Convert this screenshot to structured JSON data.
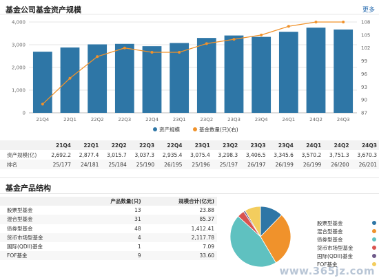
{
  "section1": {
    "title": "基金公司基金资产规模",
    "more": "更多"
  },
  "chart_data": {
    "type": "bar",
    "categories": [
      "21Q4",
      "22Q1",
      "22Q2",
      "22Q3",
      "22Q4",
      "23Q1",
      "23Q2",
      "23Q3",
      "23Q4",
      "24Q1",
      "24Q2",
      "24Q3"
    ],
    "series": [
      {
        "name": "资产规模",
        "type": "bar",
        "axis": "left",
        "color": "#2e76a6",
        "values": [
          2692.2,
          2877.4,
          3015.7,
          3037.3,
          2935.4,
          3075.4,
          3298.3,
          3406.5,
          3345.6,
          3570.2,
          3751.3,
          3670.3
        ]
      },
      {
        "name": "基金数量(只)(右)",
        "type": "line",
        "axis": "right",
        "color": "#f0922b",
        "values": [
          89,
          95,
          100,
          102,
          101,
          101,
          103,
          104,
          105,
          107,
          108,
          108
        ]
      }
    ],
    "yticks_left": [
      "4,000",
      "3,000",
      "2,000",
      "1,000",
      "0"
    ],
    "ylim_left": [
      0,
      4000
    ],
    "yticks_right": [
      "108",
      "105",
      "102",
      "99",
      "96",
      "93",
      "90",
      "87"
    ],
    "ylim_right": [
      87,
      108
    ],
    "grid": true,
    "legend": "bottom"
  },
  "scale_table": {
    "headers": [
      "21Q4",
      "22Q1",
      "22Q2",
      "22Q3",
      "22Q4",
      "23Q1",
      "23Q2",
      "23Q3",
      "23Q4",
      "24Q1",
      "24Q2",
      "24Q3"
    ],
    "rows": [
      {
        "label": "资产规模(亿)",
        "values": [
          "2,692.2",
          "2,877.4",
          "3,015.7",
          "3,037.3",
          "2,935.4",
          "3,075.4",
          "3,298.3",
          "3,406.5",
          "3,345.6",
          "3,570.2",
          "3,751.3",
          "3,670.3"
        ]
      },
      {
        "label": "排名",
        "values": [
          "25/177",
          "24/181",
          "25/184",
          "25/190",
          "26/195",
          "25/196",
          "25/197",
          "26/197",
          "26/199",
          "26/199",
          "26/200",
          "26/201"
        ]
      }
    ]
  },
  "section2": {
    "title": "基金产品结构"
  },
  "product_table": {
    "headers": [
      "",
      "产品数量(只)",
      "规模合计(亿元)"
    ],
    "rows": [
      {
        "name": "股票型基金",
        "count": "13",
        "scale": "23.88"
      },
      {
        "name": "混合型基金",
        "count": "31",
        "scale": "85.37"
      },
      {
        "name": "债券型基金",
        "count": "48",
        "scale": "1,412.41"
      },
      {
        "name": "货币市场型基金",
        "count": "4",
        "scale": "2,117.78"
      },
      {
        "name": "国际(QDII)基金",
        "count": "1",
        "scale": "7.09"
      },
      {
        "name": "FOF基金",
        "count": "9",
        "scale": "33.60"
      }
    ]
  },
  "pie_chart": {
    "type": "pie",
    "slices": [
      {
        "name": "股票型基金",
        "value": 13,
        "color": "#2e76a6"
      },
      {
        "name": "混合型基金",
        "value": 31,
        "color": "#f0922b"
      },
      {
        "name": "债券型基金",
        "value": 48,
        "color": "#5fc1c0"
      },
      {
        "name": "货币市场型基金",
        "value": 4,
        "color": "#d9534f"
      },
      {
        "name": "国际(QDII)基金",
        "value": 1,
        "color": "#6f5a8a"
      },
      {
        "name": "FOF基金",
        "value": 9,
        "color": "#f3cd5e"
      }
    ],
    "legend": "right"
  },
  "watermark": "www.365jz.com"
}
